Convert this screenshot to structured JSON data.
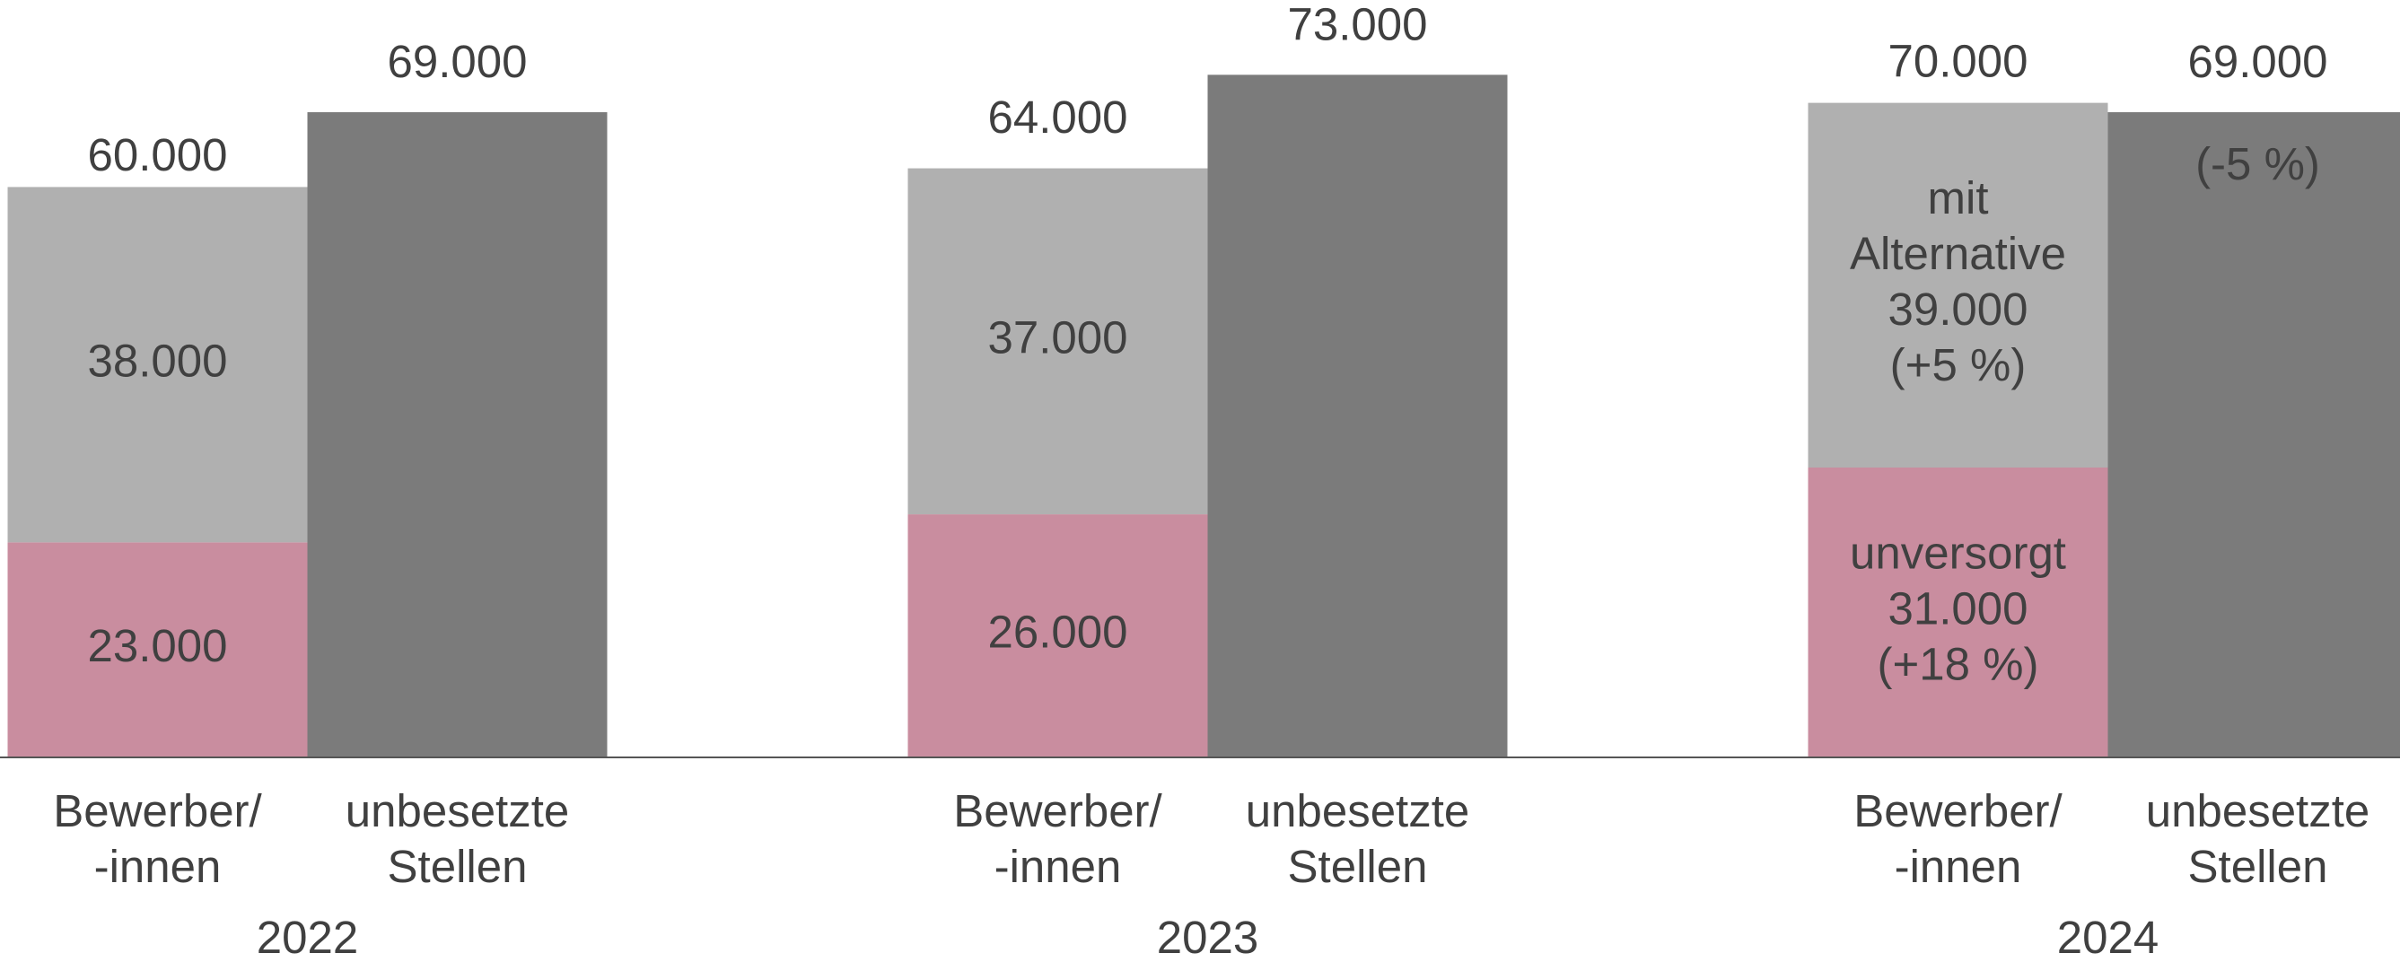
{
  "chart_data": {
    "type": "grouped_stacked_bar",
    "categories": [
      "2022",
      "2023",
      "2024"
    ],
    "bar_labels": [
      "Bewerber/\n-innen",
      "unbesetzte\nStellen"
    ],
    "ylim": [
      0,
      81000
    ],
    "series": [
      {
        "name": "unversorgt",
        "color": "#c98d9f",
        "stack": 0,
        "label_position": "inside",
        "values": [
          23000,
          26000,
          31000
        ],
        "value_labels": [
          "23.000",
          "26.000",
          "31.000"
        ],
        "change_labels": [
          null,
          null,
          "(+18 %)"
        ]
      },
      {
        "name": "mit Alternative",
        "color": "#b0b0b0",
        "stack": 0,
        "label_position": "inside",
        "values": [
          38000,
          37000,
          39000
        ],
        "value_labels": [
          "38.000",
          "37.000",
          "39.000"
        ],
        "change_labels": [
          null,
          null,
          "(+5 %)"
        ]
      },
      {
        "color": "#7b7b7b",
        "stack": 1,
        "label_position": "above",
        "values": [
          69000,
          73000,
          69000
        ],
        "value_labels": [
          "69.000",
          "73.000",
          "69.000"
        ],
        "change_labels": [
          null,
          null,
          "(-5 %)"
        ]
      }
    ],
    "totals": {
      "stack": 0,
      "values": [
        60000,
        64000,
        70000
      ],
      "value_labels": [
        "60.000",
        "64.000",
        "70.000"
      ]
    }
  }
}
